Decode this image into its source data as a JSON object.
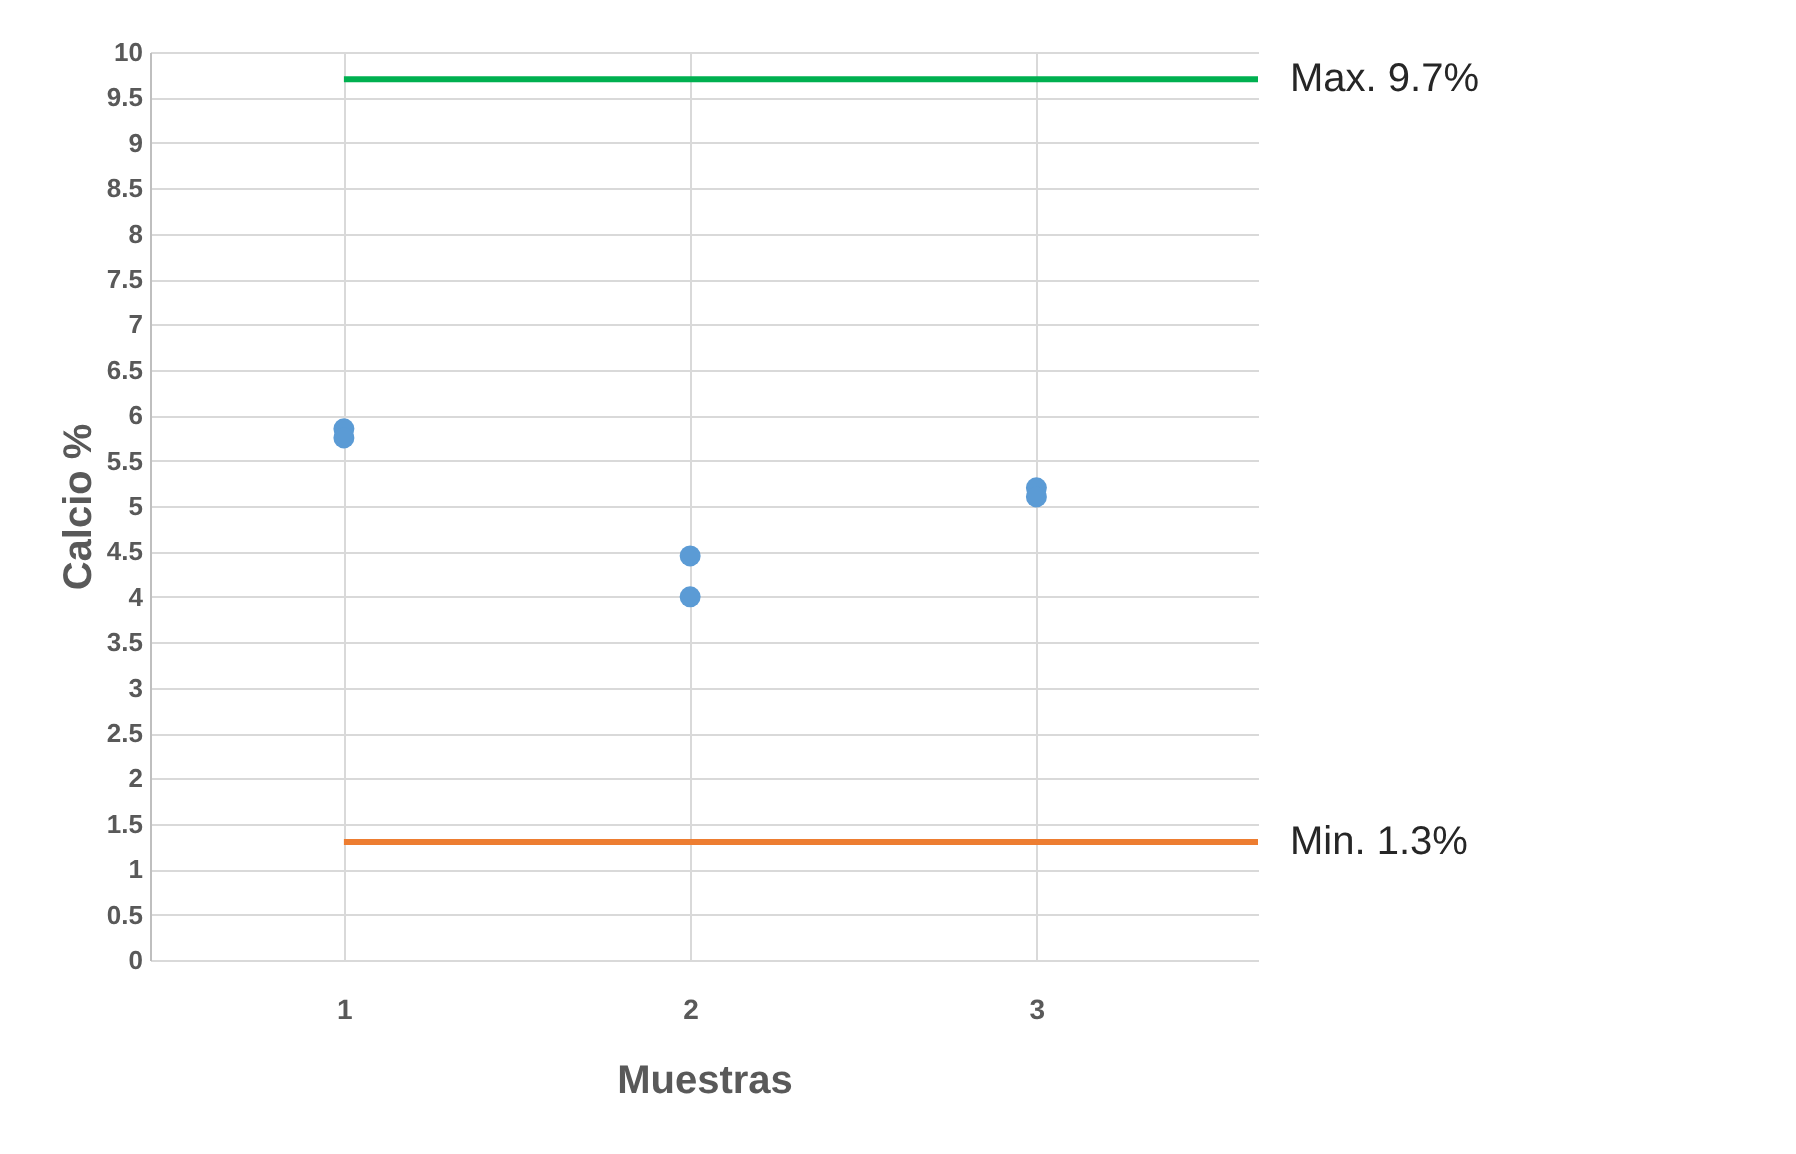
{
  "chart_data": {
    "type": "scatter",
    "xlabel": "Muestras",
    "ylabel": "Calcio %",
    "xlim": [
      0.44,
      3.64
    ],
    "xticks": [
      1,
      2,
      3
    ],
    "ylim": [
      0,
      10
    ],
    "yticks": [
      0,
      0.5,
      1,
      1.5,
      2,
      2.5,
      3,
      3.5,
      4,
      4.5,
      5,
      5.5,
      6,
      6.5,
      7,
      7.5,
      8,
      8.5,
      9,
      9.5,
      10
    ],
    "grid": true,
    "series": [
      {
        "type": "scatter",
        "marker": "circle",
        "color": "#5b9bd5",
        "x": [
          1,
          1,
          2,
          2,
          3,
          3
        ],
        "values": [
          5.85,
          5.75,
          4.45,
          4.0,
          5.2,
          5.1
        ]
      },
      {
        "type": "line",
        "name": "Max. 9.7%",
        "color": "#00b050",
        "x": [
          1,
          3.64
        ],
        "values": [
          9.7,
          9.7
        ]
      },
      {
        "type": "line",
        "name": "Min. 1.3%",
        "color": "#ed7d31",
        "x": [
          1,
          3.64
        ],
        "values": [
          1.3,
          1.3
        ]
      }
    ]
  }
}
